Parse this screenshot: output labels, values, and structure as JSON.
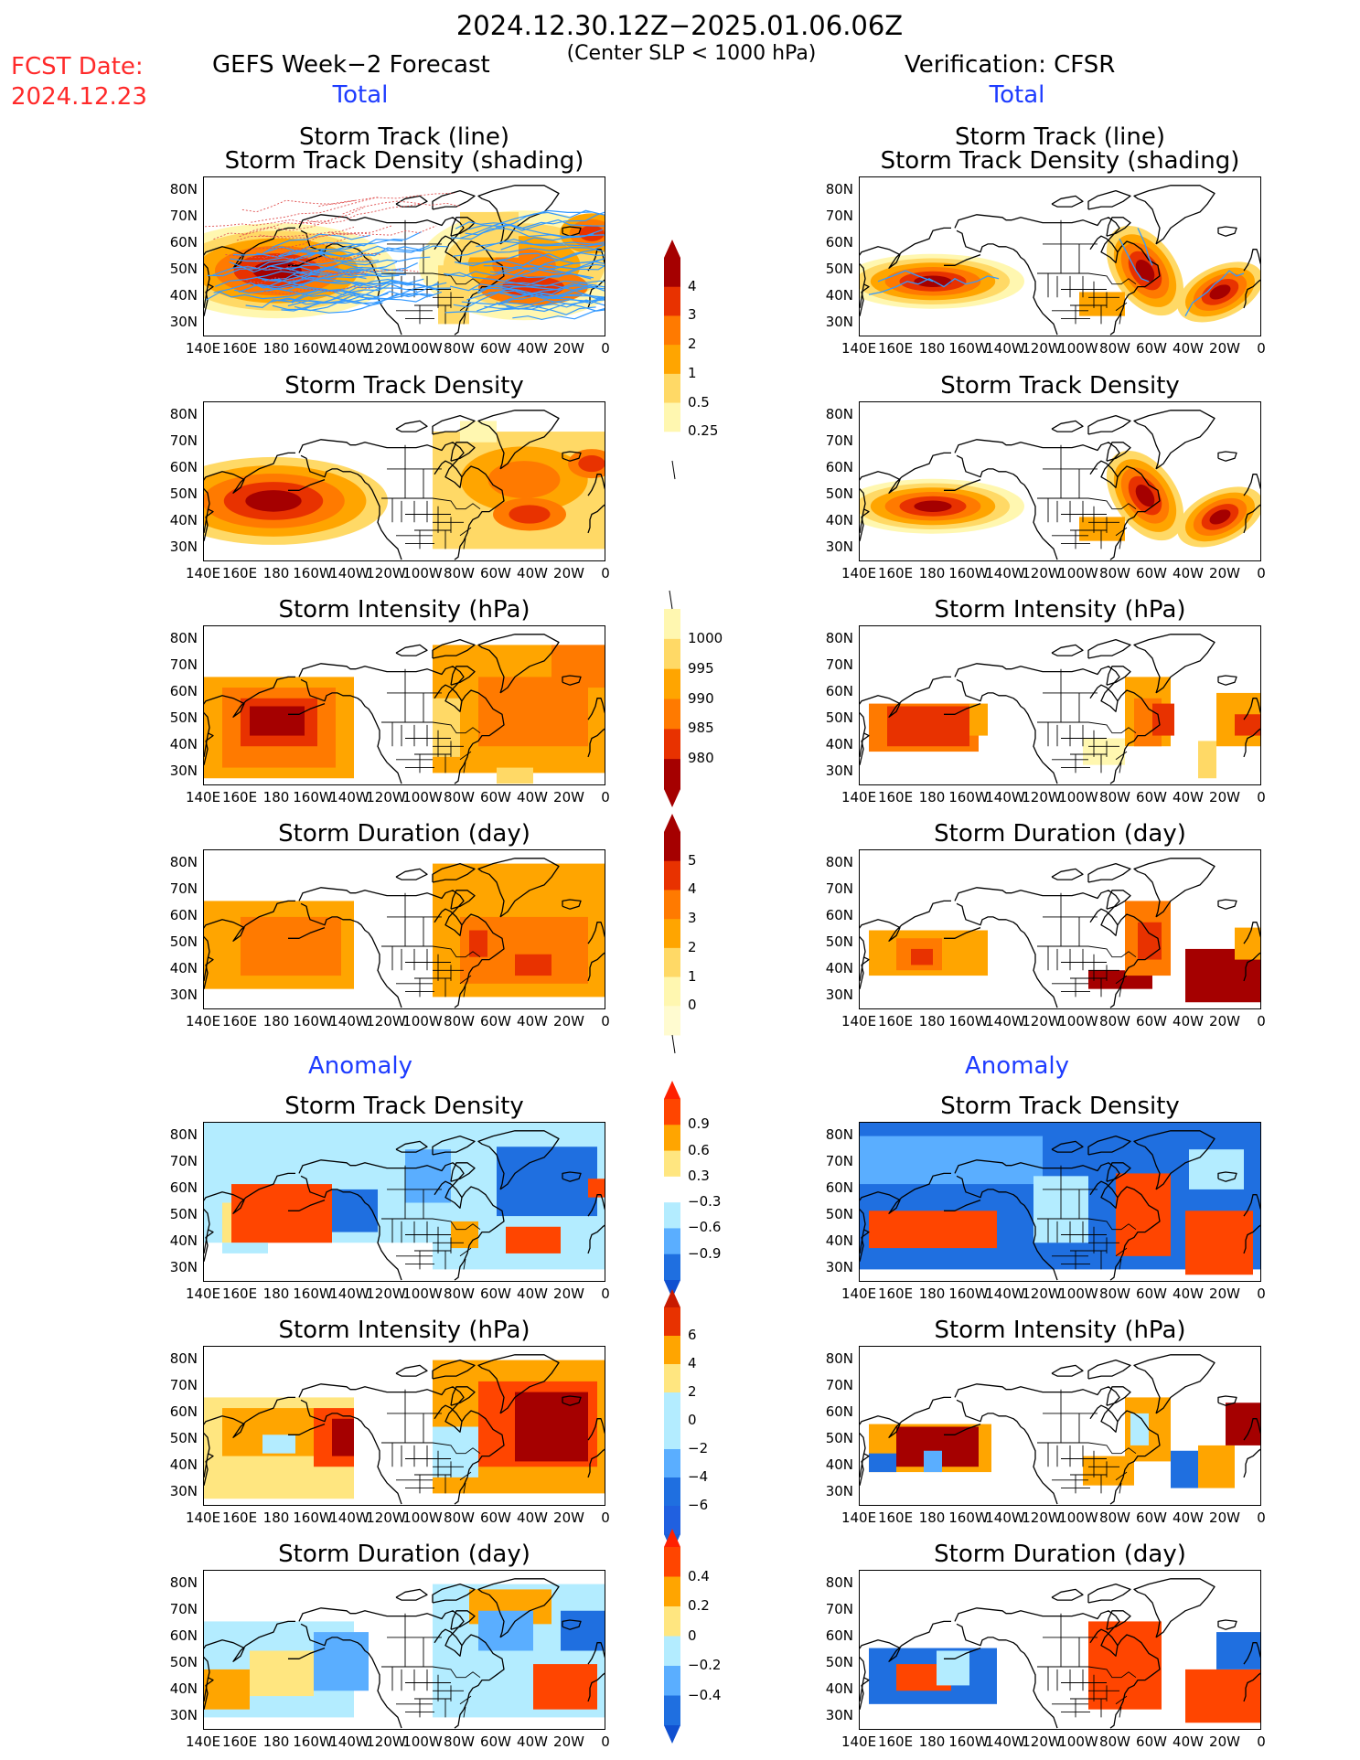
{
  "header": {
    "date_range": "2024.12.30.12Z−2025.01.06.06Z",
    "condition": "(Center SLP < 1000 hPa)",
    "fcst_label": "FCST Date:",
    "fcst_date": "2024.12.23",
    "left_title": "GEFS Week−2 Forecast",
    "right_title": "Verification: CFSR"
  },
  "sections": {
    "total": "Total",
    "anomaly": "Anomaly"
  },
  "panel_titles": {
    "track_line": "Storm Track (line)",
    "track_density_shading": "Storm Track Density (shading)",
    "track_density": "Storm Track Density",
    "intensity": "Storm Intensity (hPa)",
    "duration": "Storm Duration (day)"
  },
  "axes": {
    "x_ticks": [
      "140E",
      "160E",
      "180",
      "160W",
      "140W",
      "120W",
      "100W",
      "80W",
      "60W",
      "40W",
      "20W",
      "0"
    ],
    "y_ticks": [
      "80N",
      "70N",
      "60N",
      "50N",
      "40N",
      "30N"
    ]
  },
  "colorbars": {
    "density": [
      "4",
      "3",
      "2",
      "1",
      "0.5",
      "0.25"
    ],
    "intensity": [
      "1000",
      "995",
      "990",
      "985",
      "980"
    ],
    "duration": [
      "5",
      "4",
      "3",
      "2",
      "1",
      "0"
    ],
    "density_anom": [
      "0.9",
      "0.6",
      "0.3",
      "−0.3",
      "−0.6",
      "−0.9"
    ],
    "intensity_anom": [
      "6",
      "4",
      "2",
      "0",
      "−2",
      "−4",
      "−6"
    ],
    "duration_anom": [
      "0.4",
      "0.2",
      "0",
      "−0.2",
      "−0.4"
    ]
  },
  "colors": {
    "pos_scale": [
      "#fff7b0",
      "#ffd966",
      "#ffa500",
      "#ff7a00",
      "#e83200",
      "#a50000"
    ],
    "anom_pos": [
      "#ffe680",
      "#ffa500",
      "#ff4500"
    ],
    "anom_neg": [
      "#b3ecff",
      "#5aaeff",
      "#1f6fe0"
    ],
    "track_line": "#3399ff",
    "title_blue": "#1e3cff",
    "fcst_red": "#ff2a2a"
  }
}
